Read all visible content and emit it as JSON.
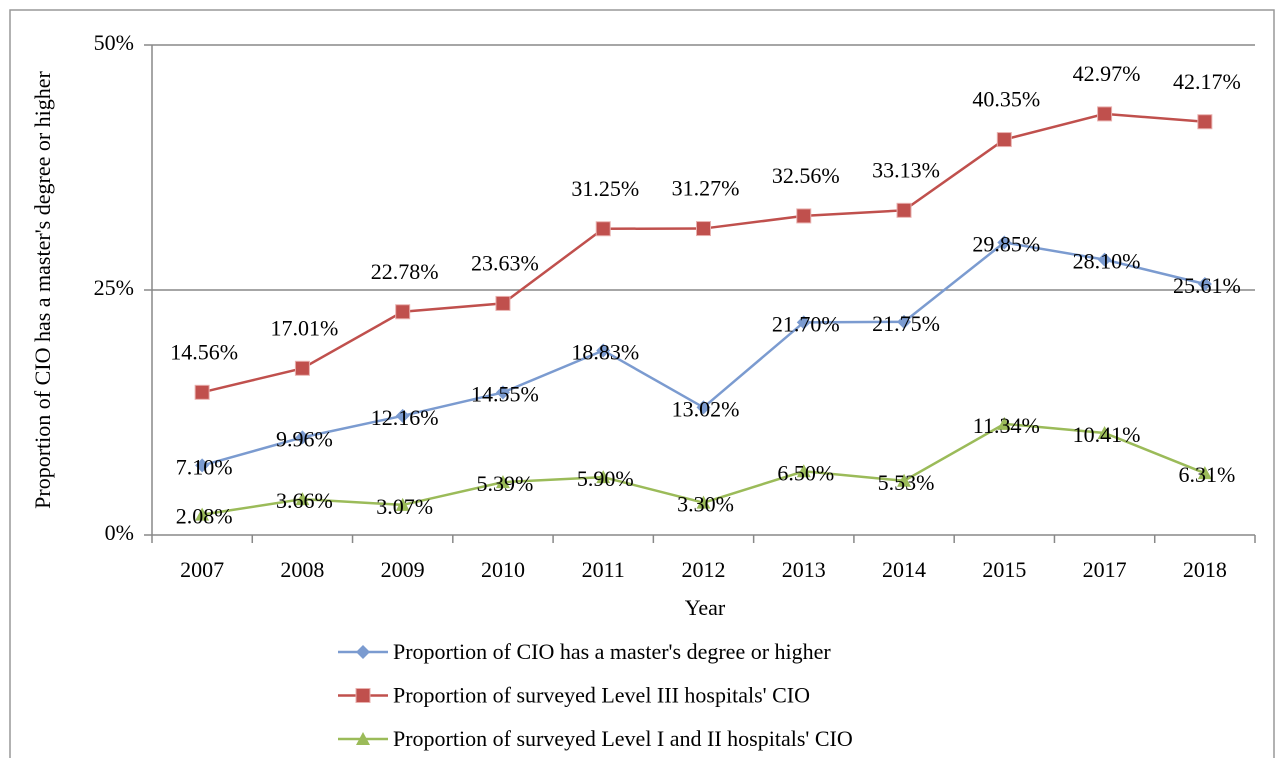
{
  "chart_data": {
    "type": "line",
    "y_label": "Proportion of CIO has a master's degree or higher",
    "x_label": "Year",
    "categories": [
      "2007",
      "2008",
      "2009",
      "2010",
      "2011",
      "2012",
      "2013",
      "2014",
      "2015",
      "2017",
      "2018"
    ],
    "series": [
      {
        "name": "Proportion of CIO has a master's degree or higher",
        "color": "#7b9bd0",
        "marker": "diamond",
        "values": [
          7.1,
          9.96,
          12.16,
          14.55,
          18.83,
          13.02,
          21.7,
          21.75,
          29.85,
          28.1,
          25.61
        ],
        "value_labels": [
          "7.10%",
          "9.96%",
          "12.16%",
          "14.55%",
          "18.83%",
          "13.02%",
          "21.70%",
          "21.75%",
          "29.85%",
          "28.10%",
          "25.61%"
        ]
      },
      {
        "name": "Proportion of surveyed Level III hospitals' CIO",
        "color": "#c0504d",
        "marker": "square",
        "values": [
          14.56,
          17.01,
          22.78,
          23.63,
          31.25,
          31.27,
          32.56,
          33.13,
          40.35,
          42.97,
          42.17
        ],
        "value_labels": [
          "14.56%",
          "17.01%",
          "22.78%",
          "23.63%",
          "31.25%",
          "31.27%",
          "32.56%",
          "33.13%",
          "40.35%",
          "42.97%",
          "42.17%"
        ]
      },
      {
        "name": "Proportion of surveyed Level I and II hospitals' CIO",
        "color": "#9bbb59",
        "marker": "triangle",
        "values": [
          2.08,
          3.66,
          3.07,
          5.39,
          5.9,
          3.3,
          6.5,
          5.53,
          11.34,
          10.41,
          6.31
        ],
        "value_labels": [
          "2.08%",
          "3.66%",
          "3.07%",
          "5.39%",
          "5.90%",
          "3.30%",
          "6.50%",
          "5.53%",
          "11.34%",
          "10.41%",
          "6.31%"
        ]
      }
    ],
    "ylim": [
      0,
      50
    ],
    "yticks": [
      {
        "value": 0,
        "label": "0%"
      },
      {
        "value": 25,
        "label": "25%"
      },
      {
        "value": 50,
        "label": "50%"
      }
    ],
    "grid": true,
    "legend": "bottom"
  }
}
